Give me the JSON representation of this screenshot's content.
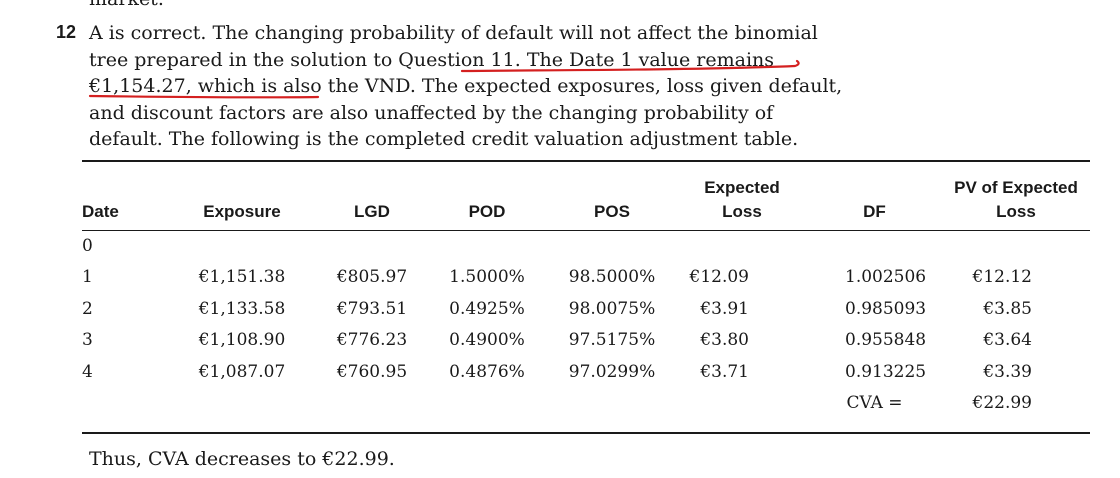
{
  "previous_line_fragment": "market.",
  "question_number": "12",
  "answer_segments": [
    "A is correct. The changing probability of default will not affect the binomial tree prepared in the solution to Question 11. ",
    "The Date 1 value remains €1,154.27, which is also the VND.",
    " The expected exposures, loss given default, and discount factors are also unaffected by the changing probability of default. The following is the completed credit valuation adjustment table."
  ],
  "table": {
    "headers": [
      "Date",
      "Exposure",
      "LGD",
      "POD",
      "POS",
      "Expected\nLoss",
      "DF",
      "PV of Expected\nLoss"
    ],
    "rows": [
      [
        "0",
        "",
        "",
        "",
        "",
        "",
        "",
        ""
      ],
      [
        "1",
        "€1,151.38",
        "€805.97",
        "1.5000%",
        "98.5000%",
        "€12.09",
        "1.002506",
        "€12.12"
      ],
      [
        "2",
        "€1,133.58",
        "€793.51",
        "0.4925%",
        "98.0075%",
        "€3.91",
        "0.985093",
        "€3.85"
      ],
      [
        "3",
        "€1,108.90",
        "€776.23",
        "0.4900%",
        "97.5175%",
        "€3.80",
        "0.955848",
        "€3.64"
      ],
      [
        "4",
        "€1,087.07",
        "€760.95",
        "0.4876%",
        "97.0299%",
        "€3.71",
        "0.913225",
        "€3.39"
      ]
    ],
    "total_label": "CVA =",
    "total_value": "€22.99"
  },
  "conclusion": "Thus, CVA decreases to €22.99.",
  "annotation_color": "#d42020"
}
